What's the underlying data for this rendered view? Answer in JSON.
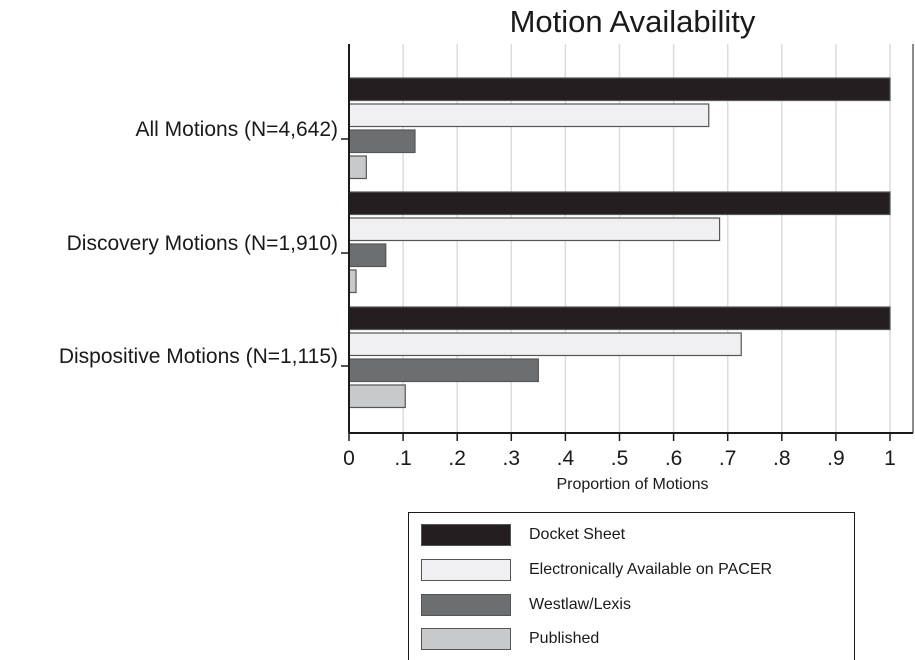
{
  "chart_data": {
    "type": "bar",
    "orientation": "horizontal",
    "title": "Motion Availability",
    "xlabel": "Proportion of Motions",
    "ylabel": "",
    "xlim": [
      0,
      1
    ],
    "xticks": [
      "0",
      ".1",
      ".2",
      ".3",
      ".4",
      ".5",
      ".6",
      ".7",
      ".8",
      ".9",
      "1"
    ],
    "grid": "vertical",
    "legend_position": "bottom",
    "categories": [
      "All Motions (N=4,642)",
      "Discovery Motions (N=1,910)",
      "Dispositive Motions (N=1,115)"
    ],
    "series": [
      {
        "name": "Docket Sheet",
        "color": "#231f20",
        "values": [
          1.0,
          1.0,
          1.0
        ]
      },
      {
        "name": "Electronically Available on PACER",
        "color": "#f0f0f2",
        "values": [
          0.665,
          0.685,
          0.725
        ]
      },
      {
        "name": "Westlaw/Lexis",
        "color": "#6d6e70",
        "values": [
          0.122,
          0.068,
          0.35
        ]
      },
      {
        "name": "Published",
        "color": "#c8c9cb",
        "values": [
          0.032,
          0.013,
          0.104
        ]
      }
    ]
  }
}
